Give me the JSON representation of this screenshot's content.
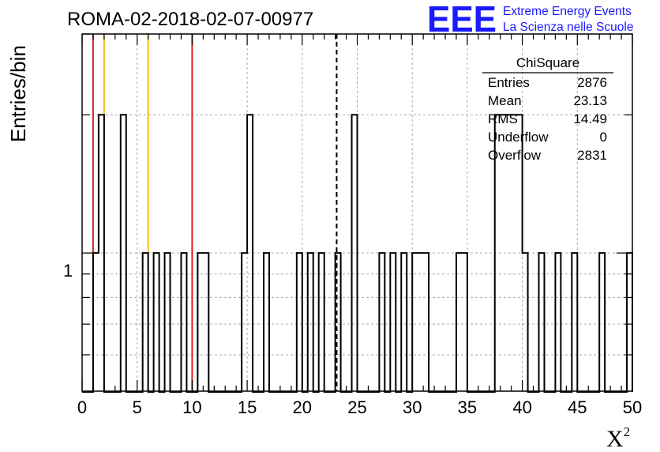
{
  "header": {
    "run_title": "ROMA-02-2018-02-07-00977",
    "logo_letters": "EEE",
    "logo_line1": "Extreme Energy Events",
    "logo_line2": "La Scienza nelle Scuole"
  },
  "stats_box": {
    "name": "ChiSquare",
    "rows": [
      {
        "label": "Entries",
        "value": "2876"
      },
      {
        "label": "Mean",
        "value": "23.13"
      },
      {
        "label": "RMS",
        "value": "14.49"
      },
      {
        "label": "Underflow",
        "value": "0"
      },
      {
        "label": "Overflow",
        "value": "2831"
      }
    ]
  },
  "chart_data": {
    "type": "histogram",
    "title": "ROMA-02-2018-02-07-00977",
    "xlabel": "X",
    "xlabel_superscript": "2",
    "ylabel": "Entries/bin",
    "xlim": [
      0,
      50
    ],
    "ylim": [
      0.5,
      3
    ],
    "y_scale": "log",
    "x_ticks": [
      "0",
      "5",
      "10",
      "15",
      "20",
      "25",
      "30",
      "35",
      "40",
      "45",
      "50"
    ],
    "y_ticks": [
      "1"
    ],
    "grid": true,
    "bin_width": 0.5,
    "bins": [
      {
        "x0": 1.0,
        "count": 1
      },
      {
        "x0": 1.5,
        "count": 2
      },
      {
        "x0": 3.5,
        "count": 2
      },
      {
        "x0": 5.5,
        "count": 1
      },
      {
        "x0": 6.5,
        "count": 1
      },
      {
        "x0": 7.5,
        "count": 1
      },
      {
        "x0": 9.0,
        "count": 1
      },
      {
        "x0": 10.5,
        "count": 1
      },
      {
        "x0": 11.0,
        "count": 1
      },
      {
        "x0": 14.5,
        "count": 1
      },
      {
        "x0": 15.0,
        "count": 2
      },
      {
        "x0": 16.5,
        "count": 1
      },
      {
        "x0": 19.5,
        "count": 1
      },
      {
        "x0": 20.5,
        "count": 1
      },
      {
        "x0": 21.5,
        "count": 1
      },
      {
        "x0": 23.0,
        "count": 1
      },
      {
        "x0": 24.5,
        "count": 2
      },
      {
        "x0": 27.0,
        "count": 1
      },
      {
        "x0": 28.0,
        "count": 1
      },
      {
        "x0": 29.0,
        "count": 1
      },
      {
        "x0": 30.0,
        "count": 1
      },
      {
        "x0": 30.5,
        "count": 1
      },
      {
        "x0": 31.0,
        "count": 1
      },
      {
        "x0": 34.0,
        "count": 1
      },
      {
        "x0": 34.5,
        "count": 1
      },
      {
        "x0": 37.5,
        "count": 2
      },
      {
        "x0": 38.0,
        "count": 2
      },
      {
        "x0": 38.5,
        "count": 2
      },
      {
        "x0": 39.0,
        "count": 2
      },
      {
        "x0": 39.5,
        "count": 2
      },
      {
        "x0": 40.0,
        "count": 1
      },
      {
        "x0": 41.5,
        "count": 1
      },
      {
        "x0": 43.0,
        "count": 1
      },
      {
        "x0": 44.5,
        "count": 1
      },
      {
        "x0": 47.0,
        "count": 1
      },
      {
        "x0": 49.5,
        "count": 1
      }
    ],
    "vertical_lines": [
      {
        "x": 1.0,
        "color": "#dd2222",
        "style": "solid"
      },
      {
        "x": 2.0,
        "color": "#f0c020",
        "style": "solid"
      },
      {
        "x": 6.0,
        "color": "#f0c020",
        "style": "solid"
      },
      {
        "x": 10.0,
        "color": "#dd2222",
        "style": "solid"
      },
      {
        "x": 23.13,
        "color": "#000000",
        "style": "dashed"
      }
    ]
  }
}
